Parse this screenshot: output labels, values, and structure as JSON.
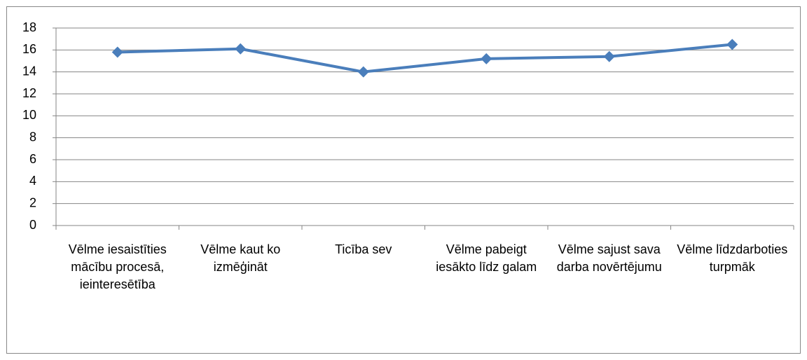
{
  "chart_data": {
    "type": "line",
    "categories": [
      "Vēlme iesaistīties mācību procesā, ieinteresētība",
      "Vēlme kaut ko izmēģināt",
      "Ticība sev",
      "Vēlme pabeigt iesākto līdz galam",
      "Vēlme sajust sava darba novērtējumu",
      "Vēlme līdzdarboties turpmāk"
    ],
    "series": [
      {
        "color": "#4a7ebb",
        "values": [
          15.8,
          16.1,
          14.0,
          15.2,
          15.4,
          16.5
        ]
      }
    ],
    "ylim": [
      0,
      18
    ],
    "yticks": [
      0,
      2,
      4,
      6,
      8,
      10,
      12,
      14,
      16,
      18
    ],
    "grid": true
  }
}
